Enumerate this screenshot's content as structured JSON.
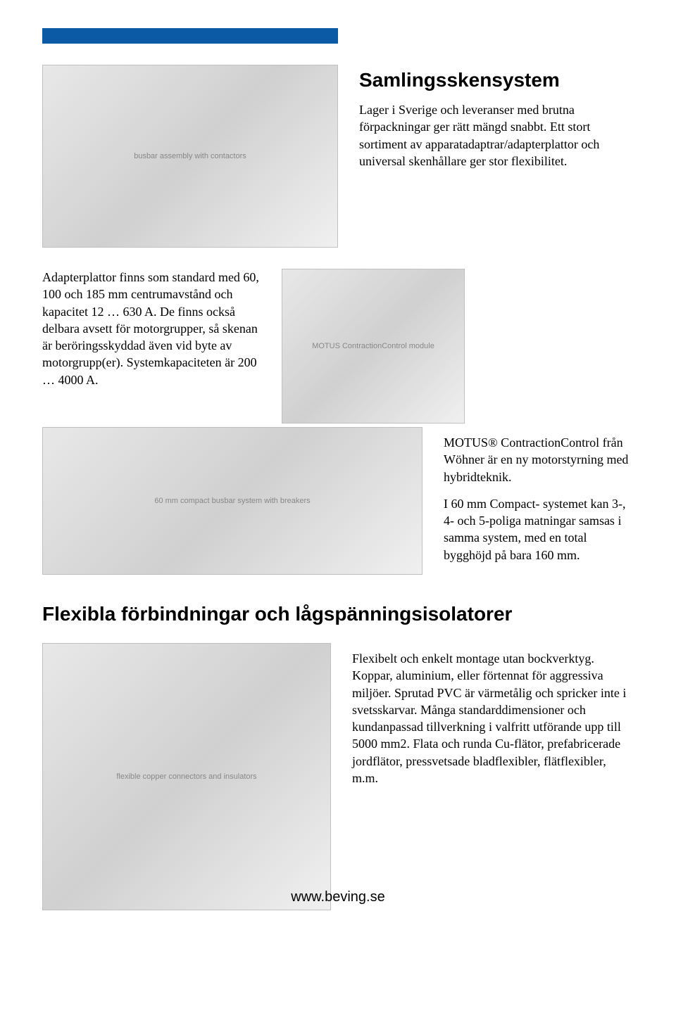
{
  "colors": {
    "brand_bar": "#0a5aa5",
    "text": "#000000",
    "background": "#ffffff"
  },
  "typography": {
    "heading_font": "Arial, Helvetica, sans-serif",
    "heading_size_pt": 21,
    "heading_weight": "bold",
    "body_font": "Times New Roman, serif",
    "body_size_pt": 13.5,
    "footer_font": "Arial, Helvetica, sans-serif",
    "footer_size_pt": 15
  },
  "section1": {
    "heading": "Samlingsskensystem",
    "intro": "Lager i Sverige och leveranser med brutna förpackningar ger rätt mängd snabbt. Ett stort sortiment av apparatadaptrar/adapterplattor och universal skenhållare ger stor flexibilitet.",
    "adapter_text": "Adapterplattor finns som standard med 60, 100 och 185 mm centrumavstånd och kapacitet 12 … 630 A. De finns också delbara avsett för motorgrupper, så skenan är beröringsskyddad även vid byte av motorgrupp(er). Systemkapaciteten är 200 … 4000 A.",
    "motus_text": "MOTUS® ContractionControl från Wöhner är en ny motorstyrning med hybridteknik.",
    "compact_text": "I 60 mm Compact- systemet kan 3-, 4- och 5-poliga matningar samsas i samma system, med en total bygghöjd på bara 160 mm."
  },
  "section2": {
    "heading": "Flexibla förbindningar och lågspänningsisolatorer",
    "body": "Flexibelt och enkelt montage utan bockverktyg. Koppar, aluminium, eller förtennat för aggressiva miljöer. Sprutad PVC är värmetålig och spricker inte i svetsskarvar. Många standarddimensioner och kundanpassad tillverkning i valfritt utförande upp till 5000 mm2. Flata och runda Cu-flätor, prefabricerade jordflätor, pressvetsade bladflexibler, flätflexibler, m.m."
  },
  "footer": {
    "url": "www.beving.se"
  },
  "images": {
    "hero_alt": "busbar assembly with contactors",
    "motus_alt": "MOTUS ContractionControl module",
    "busbar_alt": "60 mm compact busbar system with breakers",
    "flex_alt": "flexible copper connectors and insulators"
  }
}
